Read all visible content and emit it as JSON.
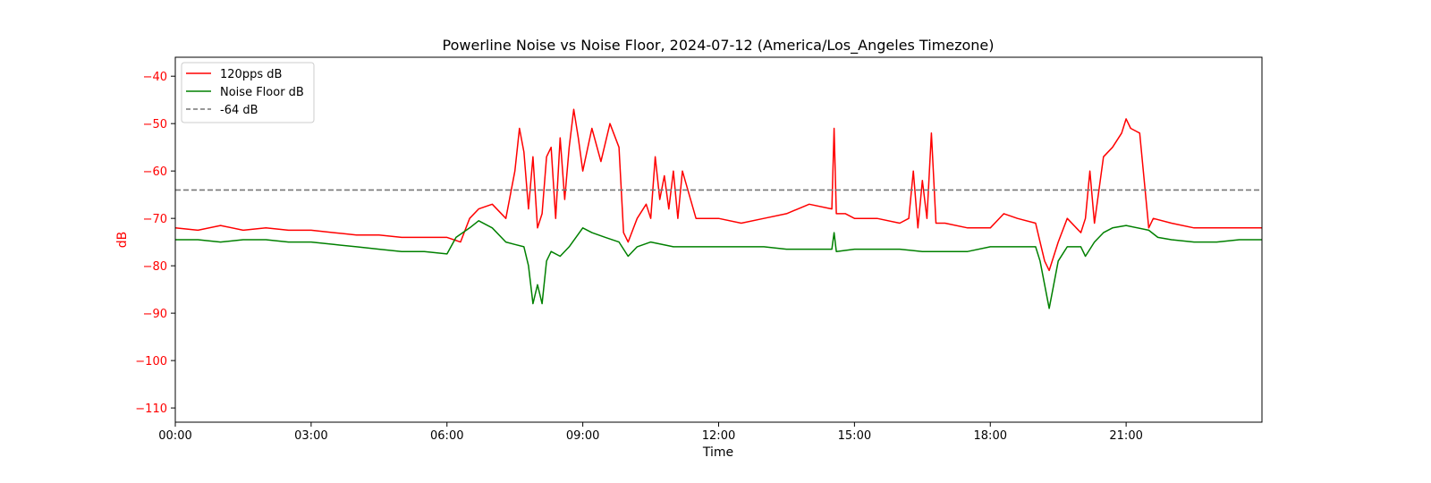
{
  "chart_data": {
    "type": "line",
    "title": "Powerline Noise vs Noise Floor, 2024-07-12 (America/Los_Angeles Timezone)",
    "xlabel": "Time",
    "ylabel": "dB",
    "x_ticks": [
      "00:00",
      "03:00",
      "06:00",
      "09:00",
      "12:00",
      "15:00",
      "18:00",
      "21:00"
    ],
    "y_ticks": [
      -40,
      -50,
      -60,
      -70,
      -80,
      -90,
      -100,
      -110
    ],
    "xlim_hours": [
      0,
      24
    ],
    "ylim": [
      -113,
      -36
    ],
    "grid": false,
    "legend_position": "upper-left",
    "colors": {
      "y_axis_text": "#ff0000",
      "axis_text": "#000000"
    },
    "series": [
      {
        "name": "120pps dB",
        "color": "#ff0000",
        "style": "solid",
        "x_hours": [
          0,
          0.5,
          1,
          1.5,
          2,
          2.5,
          3,
          3.5,
          4,
          4.5,
          5,
          5.5,
          6,
          6.3,
          6.5,
          6.7,
          7,
          7.3,
          7.5,
          7.6,
          7.7,
          7.8,
          7.9,
          8,
          8.1,
          8.2,
          8.3,
          8.4,
          8.5,
          8.6,
          8.7,
          8.8,
          8.9,
          9,
          9.2,
          9.4,
          9.6,
          9.8,
          9.9,
          10,
          10.2,
          10.4,
          10.5,
          10.6,
          10.7,
          10.8,
          10.9,
          11,
          11.1,
          11.2,
          11.5,
          12,
          12.5,
          13,
          13.5,
          14,
          14.5,
          14.55,
          14.6,
          14.8,
          15,
          15.5,
          16,
          16.2,
          16.3,
          16.4,
          16.5,
          16.6,
          16.7,
          16.8,
          17,
          17.5,
          18,
          18.3,
          18.6,
          19,
          19.1,
          19.2,
          19.3,
          19.5,
          19.7,
          19.9,
          20,
          20.1,
          20.2,
          20.3,
          20.5,
          20.7,
          20.9,
          21,
          21.1,
          21.3,
          21.5,
          21.6,
          22,
          22.5,
          23,
          23.5,
          24
        ],
        "values": [
          -72,
          -72.5,
          -71.5,
          -72.5,
          -72,
          -72.5,
          -72.5,
          -73,
          -73.5,
          -73.5,
          -74,
          -74,
          -74,
          -75,
          -70,
          -68,
          -67,
          -70,
          -60,
          -51,
          -56,
          -68,
          -57,
          -72,
          -69,
          -57,
          -55,
          -70,
          -53,
          -66,
          -55,
          -47,
          -53,
          -60,
          -51,
          -58,
          -50,
          -55,
          -73,
          -75,
          -70,
          -67,
          -70,
          -57,
          -66,
          -61,
          -68,
          -60,
          -70,
          -60,
          -70,
          -70,
          -71,
          -70,
          -69,
          -67,
          -68,
          -51,
          -69,
          -69,
          -70,
          -70,
          -71,
          -70,
          -60,
          -72,
          -62,
          -70,
          -52,
          -71,
          -71,
          -72,
          -72,
          -69,
          -70,
          -71,
          -75,
          -79,
          -81,
          -75,
          -70,
          -72,
          -73,
          -70,
          -60,
          -71,
          -57,
          -55,
          -52,
          -49,
          -51,
          -52,
          -72,
          -70,
          -71,
          -72,
          -72,
          -72,
          -72
        ]
      },
      {
        "name": "Noise Floor dB",
        "color": "#008000",
        "style": "solid",
        "x_hours": [
          0,
          0.5,
          1,
          1.5,
          2,
          2.5,
          3,
          3.5,
          4,
          4.5,
          5,
          5.5,
          6,
          6.2,
          6.5,
          6.7,
          7,
          7.3,
          7.5,
          7.7,
          7.8,
          7.9,
          8,
          8.1,
          8.2,
          8.3,
          8.5,
          8.7,
          9,
          9.2,
          9.5,
          9.8,
          10,
          10.2,
          10.5,
          11,
          11.5,
          12,
          12.5,
          13,
          13.5,
          14,
          14.5,
          14.55,
          14.6,
          15,
          15.5,
          16,
          16.5,
          17,
          17.5,
          18,
          18.5,
          19,
          19.1,
          19.2,
          19.3,
          19.5,
          19.7,
          20,
          20.1,
          20.3,
          20.5,
          20.7,
          21,
          21.5,
          21.7,
          22,
          22.5,
          23,
          23.5,
          24
        ],
        "values": [
          -74.5,
          -74.5,
          -75,
          -74.5,
          -74.5,
          -75,
          -75,
          -75.5,
          -76,
          -76.5,
          -77,
          -77,
          -77.5,
          -74,
          -72,
          -70.5,
          -72,
          -75,
          -75.5,
          -76,
          -80,
          -88,
          -84,
          -88,
          -79,
          -77,
          -78,
          -76,
          -72,
          -73,
          -74,
          -75,
          -78,
          -76,
          -75,
          -76,
          -76,
          -76,
          -76,
          -76,
          -76.5,
          -76.5,
          -76.5,
          -73,
          -77,
          -76.5,
          -76.5,
          -76.5,
          -77,
          -77,
          -77,
          -76,
          -76,
          -76,
          -79,
          -84,
          -89,
          -79,
          -76,
          -76,
          -78,
          -75,
          -73,
          -72,
          -71.5,
          -72.5,
          -74,
          -74.5,
          -75,
          -75,
          -74.5,
          -74.5
        ]
      },
      {
        "name": "-64 dB",
        "color": "#777777",
        "style": "dashed",
        "x_hours": [
          0,
          24
        ],
        "values": [
          -64,
          -64
        ]
      }
    ]
  }
}
